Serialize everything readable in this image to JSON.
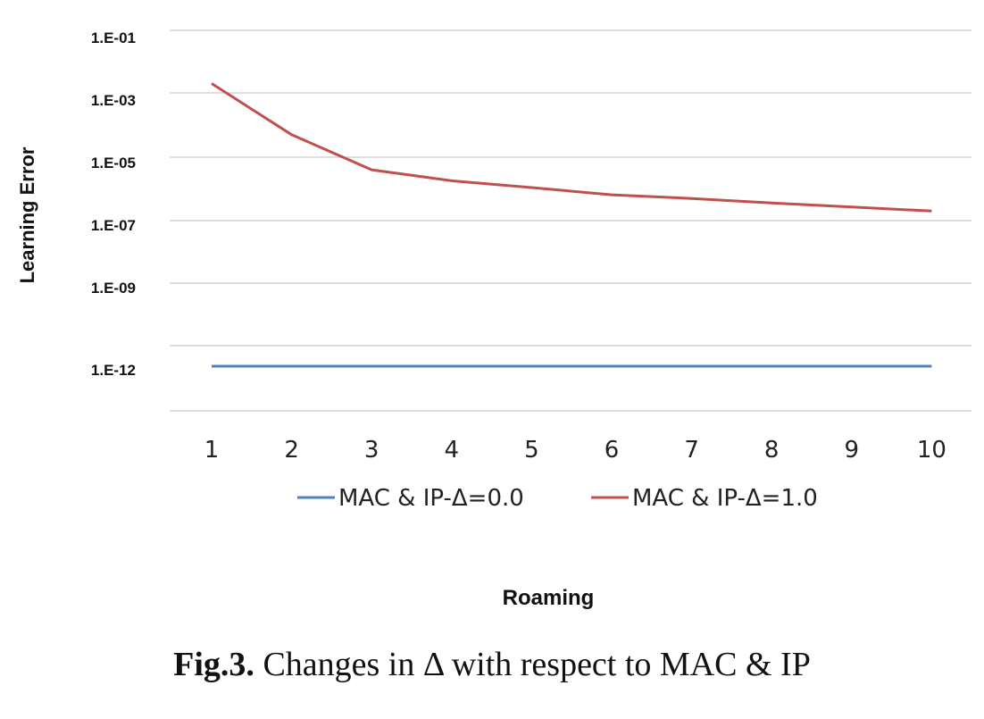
{
  "chart_data": {
    "type": "line",
    "x": [
      1,
      2,
      3,
      4,
      5,
      6,
      7,
      8,
      9,
      10
    ],
    "series": [
      {
        "name": "MAC & IP-Δ=0.0",
        "color": "#4f81bd",
        "values": [
          1e-12,
          1e-12,
          1e-12,
          1e-12,
          1e-12,
          1e-12,
          1e-12,
          1e-12,
          1e-12,
          1e-12
        ]
      },
      {
        "name": "MAC & IP-Δ=1.0",
        "color": "#c0504d",
        "values": [
          0.002,
          5e-05,
          4e-06,
          1.8e-06,
          1.1e-06,
          6.5e-07,
          5e-07,
          3.6e-07,
          2.7e-07,
          2e-07
        ]
      }
    ],
    "yscale": "log",
    "ylabel": "Learning Error",
    "xlabel": "Roaming",
    "ytick_labels": [
      "1.E-01",
      "1.E-03",
      "1.E-05",
      "1.E-07",
      "1.E-09",
      "1.E-12"
    ],
    "legend_position": "bottom",
    "grid": true
  },
  "caption": {
    "bold": "Fig.3.",
    "text": " Changes in Δ with respect to MAC & IP"
  }
}
